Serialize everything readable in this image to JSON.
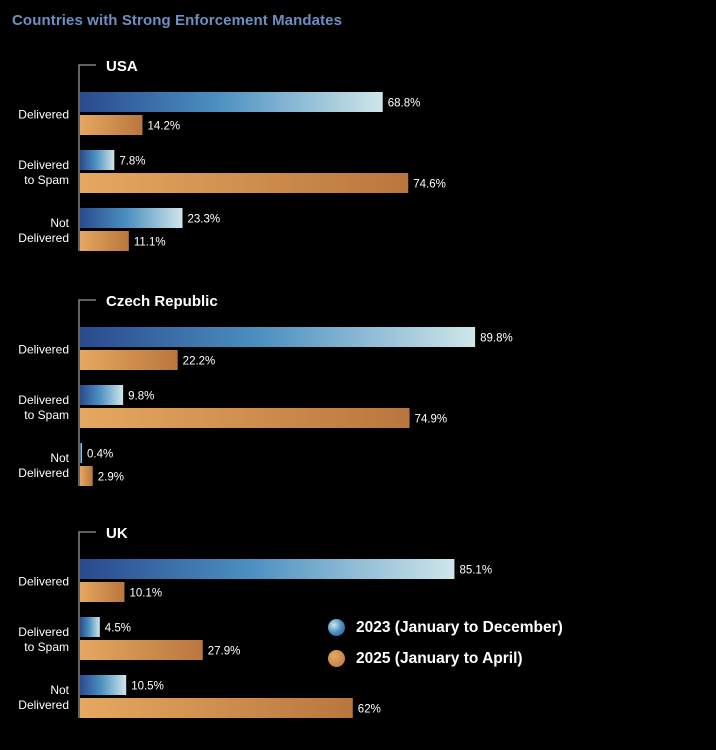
{
  "title": "Countries with Strong Enforcement Mandates",
  "colors": {
    "series_2023": [
      "#2a4a8e",
      "#4b8fc0",
      "#cfe6ea"
    ],
    "series_2025": [
      "#e6a860",
      "#b9763e"
    ],
    "title": "#6d8fc2",
    "background": "#000000"
  },
  "legend": {
    "series_2023": "2023 (January to December)",
    "series_2025": "2025 (January to April)"
  },
  "chart_data": {
    "type": "bar",
    "orientation": "horizontal",
    "title": "Countries with Strong Enforcement Mandates",
    "xlim": [
      0,
      100
    ],
    "unit": "%",
    "grid": false,
    "legend_position": "bottom-right",
    "series_names": [
      "2023 (January to December)",
      "2025 (January to April)"
    ],
    "groups": [
      {
        "name": "USA",
        "categories": [
          {
            "label": [
              "Delivered"
            ],
            "values": [
              68.8,
              14.2
            ],
            "value_labels": [
              "68.8%",
              "14.2%"
            ]
          },
          {
            "label": [
              "Delivered",
              "to Spam"
            ],
            "values": [
              7.8,
              74.6
            ],
            "value_labels": [
              "7.8%",
              "74.6%"
            ]
          },
          {
            "label": [
              "Not",
              "Delivered"
            ],
            "values": [
              23.3,
              11.1
            ],
            "value_labels": [
              "23.3%",
              "11.1%"
            ]
          }
        ]
      },
      {
        "name": "Czech Republic",
        "categories": [
          {
            "label": [
              "Delivered"
            ],
            "values": [
              89.8,
              22.2
            ],
            "value_labels": [
              "89.8%",
              "22.2%"
            ]
          },
          {
            "label": [
              "Delivered",
              "to Spam"
            ],
            "values": [
              9.8,
              74.9
            ],
            "value_labels": [
              "9.8%",
              "74.9%"
            ]
          },
          {
            "label": [
              "Not",
              "Delivered"
            ],
            "values": [
              0.4,
              2.9
            ],
            "value_labels": [
              "0.4%",
              "2.9%"
            ]
          }
        ]
      },
      {
        "name": "UK",
        "categories": [
          {
            "label": [
              "Delivered"
            ],
            "values": [
              85.1,
              10.1
            ],
            "value_labels": [
              "85.1%",
              "10.1%"
            ]
          },
          {
            "label": [
              "Delivered",
              "to Spam"
            ],
            "values": [
              4.5,
              27.9
            ],
            "value_labels": [
              "4.5%",
              "27.9%"
            ]
          },
          {
            "label": [
              "Not",
              "Delivered"
            ],
            "values": [
              10.5,
              62
            ],
            "value_labels": [
              "10.5%",
              "62%"
            ]
          }
        ]
      }
    ]
  }
}
